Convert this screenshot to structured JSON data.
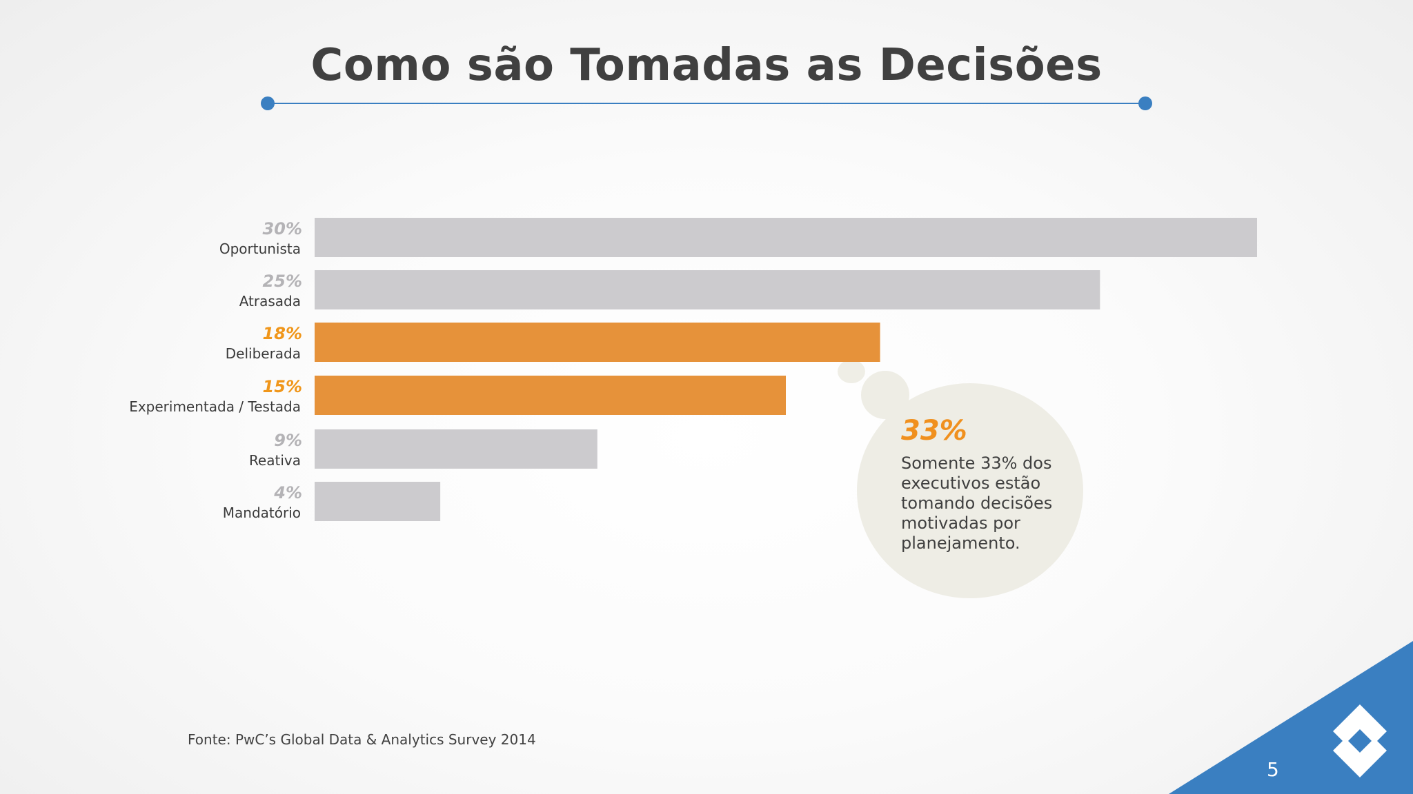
{
  "slide": {
    "title": "Como são Tomadas as Decisões",
    "source": "Fonte: PwC’s Global Data & Analytics Survey 2014",
    "page_number": "5"
  },
  "callout": {
    "percent": "33%",
    "text": "Somente 33% dos executivos estão tomando decisões motivadas por planejamento."
  },
  "colors": {
    "title_rule": "#3a7fc1",
    "bar_default": "#cccbce",
    "bar_highlight": "#e6923a",
    "label_default": "#b4b3b6",
    "label_highlight": "#f0961a",
    "corner_blue": "#3a7fc1"
  },
  "icons": {
    "corner_logo": "diamond-logo-icon"
  },
  "chart_data": {
    "type": "bar",
    "orientation": "horizontal",
    "categories": [
      "Oportunista",
      "Atrasada",
      "Deliberada",
      "Experimentada / Testada",
      "Reativa",
      "Mandatório"
    ],
    "values": [
      30,
      25,
      18,
      15,
      9,
      4
    ],
    "value_labels": [
      "30%",
      "25%",
      "18%",
      "15%",
      "9%",
      "4%"
    ],
    "highlighted": [
      false,
      false,
      true,
      true,
      false,
      false
    ],
    "unit": "%",
    "xlim": [
      0,
      30
    ],
    "grid": false,
    "legend": "none"
  }
}
